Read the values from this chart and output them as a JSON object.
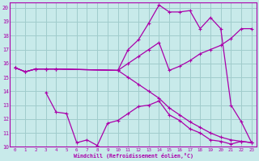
{
  "xlabel": "Windchill (Refroidissement éolien,°C)",
  "bg_color": "#c8eaea",
  "grid_color": "#a0cccc",
  "line_color": "#aa00aa",
  "xlim": [
    -0.5,
    23.5
  ],
  "ylim": [
    10,
    20.4
  ],
  "xticks": [
    0,
    1,
    2,
    3,
    4,
    5,
    6,
    7,
    8,
    9,
    10,
    11,
    12,
    13,
    14,
    15,
    16,
    17,
    18,
    19,
    20,
    21,
    22,
    23
  ],
  "yticks": [
    10,
    11,
    12,
    13,
    14,
    15,
    16,
    17,
    18,
    19,
    20
  ],
  "line1_x": [
    0,
    1,
    2,
    3,
    4,
    10,
    11,
    12,
    13,
    14,
    15,
    16,
    17,
    18,
    19,
    20,
    21,
    22,
    23
  ],
  "line1_y": [
    15.7,
    15.4,
    15.6,
    15.6,
    15.6,
    15.5,
    17.0,
    17.7,
    18.9,
    20.2,
    19.7,
    19.7,
    19.8,
    18.5,
    19.3,
    18.5,
    13.0,
    11.8,
    10.3
  ],
  "line2_x": [
    0,
    1,
    2,
    3,
    4,
    10,
    11,
    12,
    13,
    14,
    15,
    16,
    17,
    18,
    19,
    20,
    21,
    22,
    23
  ],
  "line2_y": [
    15.7,
    15.4,
    15.6,
    15.6,
    15.6,
    15.5,
    16.0,
    16.5,
    17.0,
    17.5,
    15.5,
    15.8,
    16.2,
    16.7,
    17.0,
    17.3,
    17.8,
    18.5,
    18.5
  ],
  "line3_x": [
    3,
    4,
    5,
    6,
    7,
    8,
    9,
    10,
    11,
    12,
    13,
    14,
    15,
    16,
    17,
    18,
    19,
    20,
    21,
    22,
    23
  ],
  "line3_y": [
    13.9,
    12.5,
    12.4,
    10.3,
    10.5,
    10.1,
    11.7,
    11.9,
    12.4,
    12.9,
    13.0,
    13.3,
    12.3,
    11.9,
    11.3,
    11.0,
    10.5,
    10.4,
    10.2,
    10.4,
    10.3
  ],
  "line4_x": [
    0,
    1,
    2,
    3,
    4,
    10,
    11,
    12,
    13,
    14,
    15,
    16,
    17,
    18,
    19,
    20,
    21,
    22,
    23
  ],
  "line4_y": [
    15.7,
    15.4,
    15.6,
    15.6,
    15.6,
    15.5,
    15.0,
    14.5,
    14.0,
    13.5,
    12.8,
    12.3,
    11.8,
    11.4,
    11.0,
    10.7,
    10.5,
    10.4,
    10.3
  ]
}
